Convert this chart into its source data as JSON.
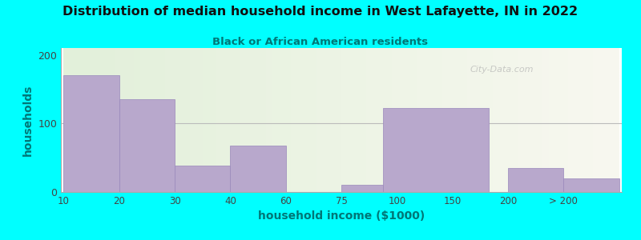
{
  "title": "Distribution of median household income in West Lafayette, IN in 2022",
  "subtitle": "Black or African American residents",
  "xlabel": "household income ($1000)",
  "ylabel": "households",
  "background_outer": "#00FFFF",
  "bar_color": "#b8a8cc",
  "bar_edge_color": "#9988bb",
  "title_color": "#111111",
  "subtitle_color": "#007777",
  "axis_label_color": "#007777",
  "tick_label_color": "#444444",
  "watermark": "City-Data.com",
  "tick_labels": [
    "10",
    "20",
    "30",
    "40",
    "60",
    "75",
    "100",
    "150",
    "200",
    "> 200"
  ],
  "values": [
    170,
    135,
    38,
    68,
    0,
    10,
    123,
    0,
    35,
    20
  ],
  "bar_widths": [
    1.0,
    1.0,
    1.0,
    1.0,
    0.0,
    0.8,
    1.6,
    0.0,
    3.2,
    2.0
  ],
  "ylim": [
    0,
    210
  ],
  "yticks": [
    0,
    100,
    200
  ],
  "gridline_color": "#bbbbbb",
  "bg_color_left": "#e2f0da",
  "bg_color_right": "#f5f5ee"
}
